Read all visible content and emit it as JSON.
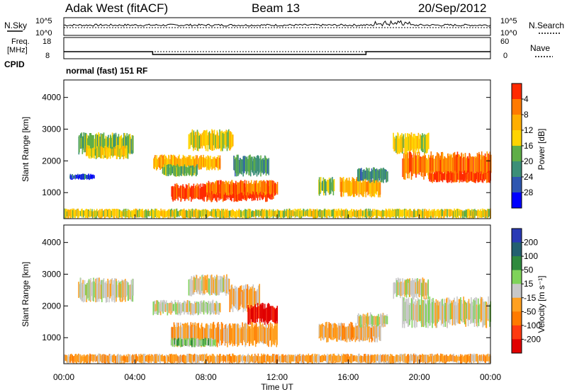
{
  "header": {
    "title": "Adak West (fitACF)",
    "beam": "Beam 13",
    "date": "20/Sep/2012"
  },
  "noise_panel": {
    "left_label": "N.Sky",
    "left_ticks": [
      "10^5",
      "10^0"
    ],
    "right_ticks": [
      "10^5",
      "10^0"
    ],
    "right_label": "N.Search"
  },
  "freq_panel": {
    "left_label_1": "Freq.",
    "left_label_2": "[MHz]",
    "left_ticks": [
      "18",
      "8"
    ],
    "right_ticks": [
      "60",
      "0"
    ],
    "right_label": "Nave",
    "cpid_label": "CPID",
    "mode_text": "normal (fast) 151 RF",
    "freq_steps_hours": [
      0,
      5,
      17,
      24
    ],
    "freq_values": [
      11,
      9,
      11
    ]
  },
  "chart_data": [
    {
      "type": "heatmap",
      "title": "Power",
      "ylabel": "Slant Range [km]",
      "xlabel": "",
      "ylim": [
        180,
        4550
      ],
      "yticks": [
        "1000",
        "2000",
        "3000",
        "4000"
      ],
      "colorbar": {
        "label": "Power [dB]",
        "ticks": [
          "4",
          "8",
          "12",
          "16",
          "20",
          "24",
          "28"
        ],
        "colors": [
          "#0000ff",
          "#2f57b0",
          "#3c8f78",
          "#5fae47",
          "#ffd400",
          "#ffae00",
          "#ff7a00",
          "#ff2a00"
        ]
      },
      "regions": [
        {
          "t0": 0.8,
          "t1": 3.9,
          "r0": 2200,
          "r1": 2900,
          "level": 3
        },
        {
          "t0": 1.2,
          "t1": 3.6,
          "r0": 2050,
          "r1": 2500,
          "level": 4
        },
        {
          "t0": 0.3,
          "t1": 1.7,
          "r0": 1400,
          "r1": 1600,
          "level": 1
        },
        {
          "t0": 5.0,
          "t1": 8.8,
          "r0": 1700,
          "r1": 2200,
          "level": 5
        },
        {
          "t0": 7.0,
          "t1": 9.5,
          "r0": 2300,
          "r1": 3000,
          "level": 4
        },
        {
          "t0": 5.5,
          "t1": 7.5,
          "r0": 1500,
          "r1": 1900,
          "level": 3
        },
        {
          "t0": 9.5,
          "t1": 11.5,
          "r0": 1500,
          "r1": 2200,
          "level": 2
        },
        {
          "t0": 6.0,
          "t1": 11.8,
          "r0": 700,
          "r1": 1300,
          "level": 7
        },
        {
          "t0": 8.0,
          "t1": 12.0,
          "r0": 900,
          "r1": 1400,
          "level": 6
        },
        {
          "t0": 14.3,
          "t1": 15.2,
          "r0": 900,
          "r1": 1500,
          "level": 3
        },
        {
          "t0": 15.5,
          "t1": 17.8,
          "r0": 850,
          "r1": 1500,
          "level": 5
        },
        {
          "t0": 16.5,
          "t1": 18.2,
          "r0": 1300,
          "r1": 1800,
          "level": 2
        },
        {
          "t0": 19.0,
          "t1": 24.0,
          "r0": 1400,
          "r1": 2300,
          "level": 6
        },
        {
          "t0": 18.5,
          "t1": 20.5,
          "r0": 2200,
          "r1": 2900,
          "level": 4
        },
        {
          "t0": 20.5,
          "t1": 24.0,
          "r0": 1300,
          "r1": 1700,
          "level": 7
        },
        {
          "t0": 0.0,
          "t1": 24.0,
          "r0": 180,
          "r1": 500,
          "level": 4
        }
      ]
    },
    {
      "type": "heatmap",
      "title": "Velocity",
      "ylabel": "Slant Range [km]",
      "xlabel": "Time UT",
      "ylim": [
        180,
        4550
      ],
      "xticks": [
        "00:00",
        "04:00",
        "08:00",
        "12:00",
        "16:00",
        "20:00",
        "00:00"
      ],
      "yticks": [
        "1000",
        "2000",
        "3000",
        "4000"
      ],
      "colorbar": {
        "label": "Velocity [m s⁻¹]",
        "ticks": [
          "200",
          "100",
          "50",
          "15",
          "-15",
          "-50",
          "-100",
          "-200"
        ],
        "colors": [
          "#2a3ab5",
          "#236070",
          "#2f8a3e",
          "#7fd35a",
          "#c8c8c8",
          "#ffa020",
          "#ff7a00",
          "#ff3a10",
          "#e00000"
        ]
      },
      "regions": [
        {
          "t0": 0.8,
          "t1": 3.9,
          "r0": 2100,
          "r1": 2900,
          "level": 4
        },
        {
          "t0": 5.0,
          "t1": 8.8,
          "r0": 1700,
          "r1": 2200,
          "level": 4
        },
        {
          "t0": 7.0,
          "t1": 9.3,
          "r0": 2300,
          "r1": 3000,
          "level": 4
        },
        {
          "t0": 9.3,
          "t1": 11.0,
          "r0": 1800,
          "r1": 2700,
          "level": 5
        },
        {
          "t0": 10.3,
          "t1": 12.0,
          "r0": 1400,
          "r1": 2100,
          "level": 8
        },
        {
          "t0": 6.0,
          "t1": 12.0,
          "r0": 700,
          "r1": 1500,
          "level": 5
        },
        {
          "t0": 6.0,
          "t1": 8.5,
          "r0": 700,
          "r1": 1000,
          "level": 3
        },
        {
          "t0": 14.3,
          "t1": 17.8,
          "r0": 850,
          "r1": 1500,
          "level": 5
        },
        {
          "t0": 16.5,
          "t1": 18.2,
          "r0": 1300,
          "r1": 1800,
          "level": 4
        },
        {
          "t0": 19.0,
          "t1": 24.0,
          "r0": 1300,
          "r1": 2300,
          "level": 4
        },
        {
          "t0": 18.5,
          "t1": 20.5,
          "r0": 2200,
          "r1": 2900,
          "level": 4
        },
        {
          "t0": 0.0,
          "t1": 24.0,
          "r0": 180,
          "r1": 500,
          "level": 5
        }
      ]
    }
  ]
}
